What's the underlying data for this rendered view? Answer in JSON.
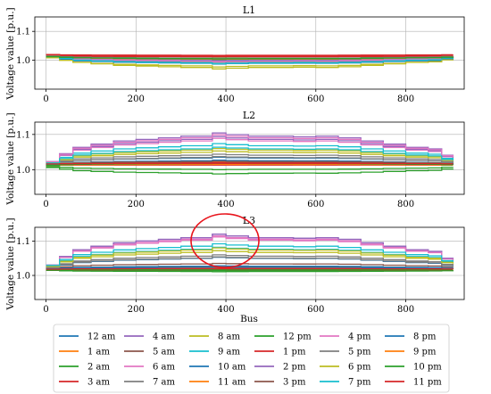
{
  "chart_data": {
    "type": "line",
    "xlabel": "Bus",
    "ylabel": "Voltage value [p.u.]",
    "xlim": [
      -25,
      930
    ],
    "x_ticks": [
      0,
      200,
      400,
      600,
      800
    ],
    "grid": true,
    "legend_placement": "bottom",
    "series_names": [
      "12 am",
      "1 am",
      "2 am",
      "3 am",
      "4 am",
      "5 am",
      "6 am",
      "7 am",
      "8 am",
      "9 am",
      "10 am",
      "11 am",
      "12 pm",
      "1 pm",
      "2 pm",
      "3 pm",
      "4 pm",
      "5 pm",
      "6 pm",
      "7 pm",
      "8 pm",
      "9 pm",
      "10 pm",
      "11 pm"
    ],
    "series_colors": [
      "#1f77b4",
      "#ff7f0e",
      "#2ca02c",
      "#d62728",
      "#9467bd",
      "#8c564b",
      "#e377c2",
      "#7f7f7f",
      "#bcbd22",
      "#17becf",
      "#1f77b4",
      "#ff7f0e",
      "#2ca02c",
      "#d62728",
      "#9467bd",
      "#8c564b",
      "#e377c2",
      "#7f7f7f",
      "#bcbd22",
      "#17becf",
      "#1f77b4",
      "#ff7f0e",
      "#2ca02c",
      "#d62728"
    ],
    "panels": [
      {
        "title": "L1",
        "ylim": [
          0.9,
          1.15
        ],
        "y_ticks": [
          "1.0",
          "1.1"
        ],
        "y_tick_values": [
          1.0,
          1.1
        ],
        "profile_x": [
          0,
          30,
          60,
          100,
          150,
          200,
          250,
          300,
          370,
          400,
          450,
          500,
          550,
          600,
          650,
          700,
          750,
          800,
          850,
          880,
          905
        ],
        "profile_shape": [
          0.1,
          0.35,
          0.55,
          0.65,
          0.75,
          0.8,
          0.85,
          0.9,
          1.0,
          0.95,
          0.9,
          0.9,
          0.88,
          0.9,
          0.85,
          0.75,
          0.65,
          0.55,
          0.5,
          0.3,
          0.25
        ],
        "base": [
          1.018,
          1.016,
          1.012,
          1.02,
          1.015,
          1.014,
          1.013,
          1.015,
          1.02,
          1.018,
          1.012,
          1.015,
          1.013,
          1.016,
          1.015,
          1.017,
          1.014,
          1.016,
          1.012,
          1.016,
          1.017,
          1.015,
          1.013,
          1.02
        ],
        "amp": [
          -0.02,
          -0.01,
          -0.012,
          -0.005,
          -0.018,
          -0.008,
          -0.015,
          -0.022,
          -0.05,
          -0.03,
          -0.025,
          -0.012,
          -0.006,
          -0.004,
          -0.02,
          -0.014,
          -0.018,
          -0.01,
          -0.035,
          -0.028,
          -0.016,
          -0.012,
          -0.008,
          -0.003
        ]
      },
      {
        "title": "L2",
        "ylim": [
          0.93,
          1.135
        ],
        "y_ticks": [
          "1.0",
          "1.1"
        ],
        "y_tick_values": [
          1.0,
          1.1
        ],
        "profile_x": [
          0,
          30,
          60,
          100,
          150,
          200,
          250,
          300,
          370,
          400,
          450,
          500,
          550,
          600,
          650,
          700,
          750,
          800,
          850,
          880,
          905
        ],
        "profile_shape": [
          0.1,
          0.35,
          0.55,
          0.65,
          0.75,
          0.8,
          0.85,
          0.9,
          1.0,
          0.95,
          0.9,
          0.9,
          0.88,
          0.9,
          0.85,
          0.75,
          0.65,
          0.55,
          0.5,
          0.3,
          0.25
        ],
        "base": [
          1.015,
          1.014,
          1.008,
          1.016,
          1.014,
          1.012,
          1.014,
          1.014,
          1.015,
          1.014,
          1.012,
          1.014,
          1.01,
          1.013,
          1.014,
          1.014,
          1.014,
          1.012,
          1.015,
          1.014,
          1.013,
          1.012,
          1.012,
          1.016
        ],
        "amp": [
          0.02,
          0.008,
          -0.02,
          0.004,
          0.09,
          0.012,
          0.075,
          0.03,
          0.038,
          0.06,
          0.015,
          0.002,
          -0.01,
          0.0,
          0.08,
          0.01,
          0.085,
          0.025,
          0.045,
          0.05,
          0.005,
          0.003,
          0.006,
          0.002
        ]
      },
      {
        "title": "L3",
        "ylim": [
          0.93,
          1.14
        ],
        "y_ticks": [
          "1.0",
          "1.1"
        ],
        "y_tick_values": [
          1.0,
          1.1
        ],
        "profile_x": [
          0,
          30,
          60,
          100,
          150,
          200,
          250,
          300,
          370,
          400,
          450,
          500,
          550,
          600,
          650,
          700,
          750,
          800,
          850,
          880,
          905
        ],
        "profile_shape": [
          0.1,
          0.35,
          0.55,
          0.65,
          0.75,
          0.8,
          0.85,
          0.9,
          1.0,
          0.95,
          0.9,
          0.9,
          0.88,
          0.9,
          0.85,
          0.75,
          0.65,
          0.55,
          0.5,
          0.3,
          0.25
        ],
        "base": [
          1.018,
          1.016,
          1.015,
          1.02,
          1.02,
          1.02,
          1.02,
          1.02,
          1.022,
          1.022,
          1.018,
          1.017,
          1.016,
          1.015,
          1.02,
          1.017,
          1.02,
          1.019,
          1.02,
          1.022,
          1.018,
          1.016,
          1.015,
          1.018
        ],
        "amp": [
          0.035,
          0.005,
          -0.004,
          0.0,
          0.1,
          0.015,
          0.095,
          0.04,
          0.05,
          0.06,
          0.01,
          0.005,
          -0.002,
          0.002,
          0.1,
          0.008,
          0.092,
          0.035,
          0.06,
          0.07,
          0.006,
          0.004,
          0.003,
          0.002
        ]
      }
    ]
  }
}
